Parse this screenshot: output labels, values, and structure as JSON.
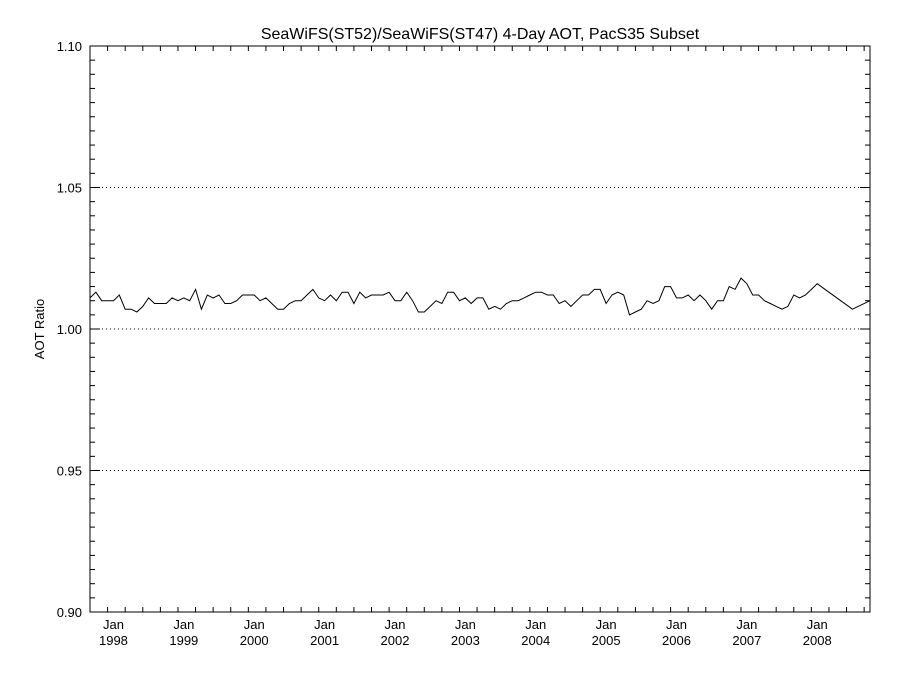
{
  "chart_data": {
    "type": "line",
    "title": "SeaWiFS(ST52)/SeaWiFS(ST47) 4-Day AOT, PacS35 Subset",
    "xlabel": "",
    "ylabel": "AOT Ratio",
    "ylim": [
      0.9,
      1.1
    ],
    "xlim": [
      "1997-09",
      "2008-10"
    ],
    "y_ticks": [
      "0.90",
      "0.95",
      "1.00",
      "1.05",
      "1.10"
    ],
    "x_ticks": [
      {
        "month": "Jan",
        "year": "1998"
      },
      {
        "month": "Jan",
        "year": "1999"
      },
      {
        "month": "Jan",
        "year": "2000"
      },
      {
        "month": "Jan",
        "year": "2001"
      },
      {
        "month": "Jan",
        "year": "2002"
      },
      {
        "month": "Jan",
        "year": "2003"
      },
      {
        "month": "Jan",
        "year": "2004"
      },
      {
        "month": "Jan",
        "year": "2005"
      },
      {
        "month": "Jan",
        "year": "2006"
      },
      {
        "month": "Jan",
        "year": "2007"
      },
      {
        "month": "Jan",
        "year": "2008"
      }
    ],
    "reference_lines": [
      0.95,
      1.0,
      1.05
    ],
    "grid": false,
    "series": [
      {
        "x": [
          "1997-09",
          "1997-10",
          "1997-11",
          "1997-12",
          "1998-01",
          "1998-02",
          "1998-03",
          "1998-04",
          "1998-05",
          "1998-06",
          "1998-07",
          "1998-08",
          "1998-09",
          "1998-10",
          "1998-11",
          "1998-12",
          "1999-01",
          "1999-02",
          "1999-03",
          "1999-04",
          "1999-05",
          "1999-06",
          "1999-07",
          "1999-08",
          "1999-09",
          "1999-10",
          "1999-11",
          "1999-12",
          "2000-01",
          "2000-02",
          "2000-03",
          "2000-04",
          "2000-05",
          "2000-06",
          "2000-07",
          "2000-08",
          "2000-09",
          "2000-10",
          "2000-11",
          "2000-12",
          "2001-01",
          "2001-02",
          "2001-03",
          "2001-04",
          "2001-05",
          "2001-06",
          "2001-07",
          "2001-08",
          "2001-09",
          "2001-10",
          "2001-11",
          "2001-12",
          "2002-01",
          "2002-02",
          "2002-03",
          "2002-04",
          "2002-05",
          "2002-06",
          "2002-07",
          "2002-08",
          "2002-09",
          "2002-10",
          "2002-11",
          "2002-12",
          "2003-01",
          "2003-02",
          "2003-03",
          "2003-04",
          "2003-05",
          "2003-06",
          "2003-07",
          "2003-08",
          "2003-09",
          "2003-10",
          "2003-11",
          "2003-12",
          "2004-01",
          "2004-02",
          "2004-03",
          "2004-04",
          "2004-05",
          "2004-06",
          "2004-07",
          "2004-08",
          "2004-09",
          "2004-10",
          "2004-11",
          "2004-12",
          "2005-01",
          "2005-02",
          "2005-03",
          "2005-04",
          "2005-05",
          "2005-06",
          "2005-07",
          "2005-08",
          "2005-09",
          "2005-10",
          "2005-11",
          "2005-12",
          "2006-01",
          "2006-02",
          "2006-03",
          "2006-04",
          "2006-05",
          "2006-06",
          "2006-07",
          "2006-08",
          "2006-09",
          "2006-10",
          "2006-11",
          "2006-12",
          "2007-01",
          "2007-02",
          "2007-03",
          "2007-04",
          "2007-05",
          "2007-06",
          "2007-07",
          "2007-08",
          "2007-09",
          "2007-10",
          "2007-11",
          "2007-12",
          "2008-01",
          "2008-03",
          "2008-05",
          "2008-07",
          "2008-10"
        ],
        "values": [
          1.011,
          1.013,
          1.01,
          1.01,
          1.01,
          1.012,
          1.007,
          1.007,
          1.006,
          1.008,
          1.011,
          1.009,
          1.009,
          1.009,
          1.011,
          1.01,
          1.011,
          1.01,
          1.014,
          1.007,
          1.012,
          1.011,
          1.012,
          1.009,
          1.009,
          1.01,
          1.012,
          1.012,
          1.012,
          1.01,
          1.011,
          1.009,
          1.007,
          1.007,
          1.009,
          1.01,
          1.01,
          1.012,
          1.014,
          1.011,
          1.01,
          1.012,
          1.01,
          1.013,
          1.013,
          1.009,
          1.013,
          1.011,
          1.012,
          1.012,
          1.012,
          1.013,
          1.01,
          1.01,
          1.013,
          1.01,
          1.006,
          1.006,
          1.008,
          1.01,
          1.009,
          1.013,
          1.013,
          1.01,
          1.011,
          1.009,
          1.011,
          1.011,
          1.007,
          1.008,
          1.007,
          1.009,
          1.01,
          1.01,
          1.011,
          1.012,
          1.013,
          1.013,
          1.012,
          1.012,
          1.009,
          1.01,
          1.008,
          1.01,
          1.012,
          1.012,
          1.014,
          1.014,
          1.009,
          1.012,
          1.013,
          1.012,
          1.005,
          1.006,
          1.007,
          1.01,
          1.009,
          1.01,
          1.015,
          1.015,
          1.011,
          1.011,
          1.012,
          1.01,
          1.012,
          1.01,
          1.007,
          1.01,
          1.01,
          1.015,
          1.014,
          1.018,
          1.016,
          1.012,
          1.012,
          1.01,
          1.009,
          1.008,
          1.007,
          1.008,
          1.012,
          1.011,
          1.012,
          1.014,
          1.016,
          1.013,
          1.01,
          1.007,
          1.01
        ]
      }
    ]
  }
}
